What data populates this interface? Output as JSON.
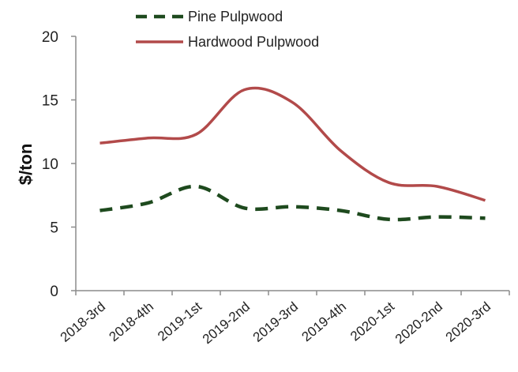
{
  "chart_data": {
    "type": "line",
    "title": "",
    "xlabel": "",
    "ylabel": "$/ton",
    "ylim": [
      0,
      20
    ],
    "yticks": [
      0,
      5,
      10,
      15,
      20
    ],
    "categories": [
      "2018-3rd",
      "2018-4th",
      "2019-1st",
      "2019-2nd",
      "2019-3rd",
      "2019-4th",
      "2020-1st",
      "2020-2nd",
      "2020-3rd"
    ],
    "series": [
      {
        "name": "Pine Pulpwood",
        "color": "#1e4a1e",
        "style": "dashed",
        "values": [
          6.3,
          6.9,
          8.2,
          6.5,
          6.6,
          6.3,
          5.6,
          5.8,
          5.7
        ]
      },
      {
        "name": "Hardwood Pulpwood",
        "color": "#b24a4a",
        "style": "solid",
        "values": [
          11.6,
          12.0,
          12.3,
          15.8,
          14.8,
          11.0,
          8.5,
          8.2,
          7.1
        ]
      }
    ],
    "grid": false,
    "legend": "top"
  }
}
